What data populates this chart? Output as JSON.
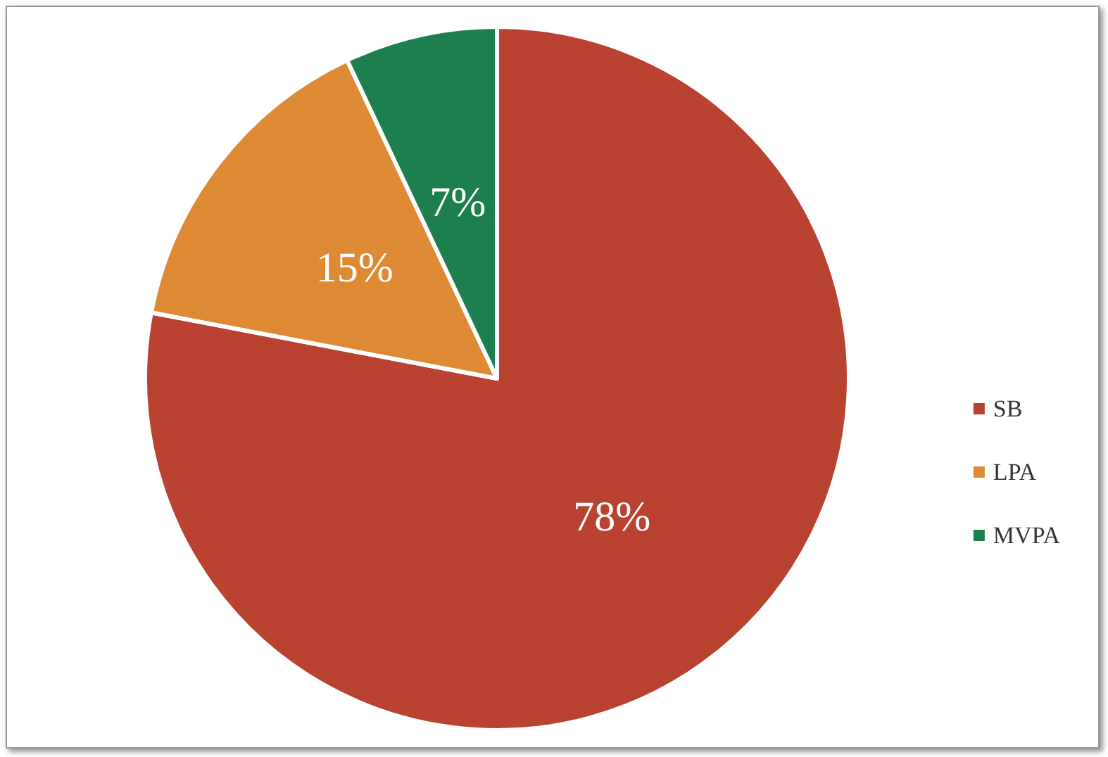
{
  "chart_data": {
    "type": "pie",
    "categories": [
      "SB",
      "LPA",
      "MVPA"
    ],
    "values": [
      78,
      15,
      7
    ],
    "colors": [
      "#b94230",
      "#de8a35",
      "#1e7f4e"
    ],
    "value_labels": [
      "78%",
      "15%",
      "7%"
    ],
    "legend": "right"
  }
}
